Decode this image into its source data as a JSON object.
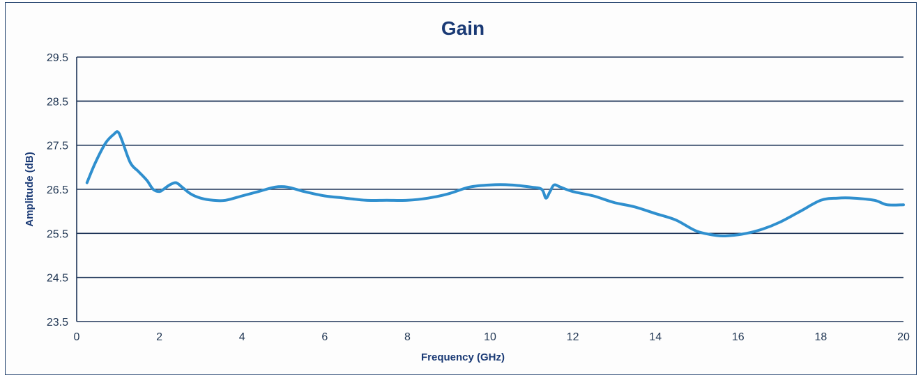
{
  "chart_data": {
    "type": "line",
    "title": "Gain",
    "xlabel": "Frequency (GHz)",
    "ylabel": "Amplitude (dB)",
    "xlim": [
      0,
      20
    ],
    "ylim": [
      23.5,
      29.5
    ],
    "x_ticks": [
      "0",
      "2",
      "4",
      "6",
      "8",
      "10",
      "12",
      "14",
      "16",
      "18",
      "20"
    ],
    "y_ticks": [
      "29.5",
      "28.5",
      "27.5",
      "26.5",
      "25.5",
      "24.5",
      "23.5"
    ],
    "grid": true,
    "legend": "none",
    "series_color": "#2f8fce",
    "series": [
      {
        "x": [
          0.25,
          0.45,
          0.7,
          0.9,
          1.0,
          1.1,
          1.3,
          1.5,
          1.7,
          1.85,
          2.0,
          2.1,
          2.25,
          2.4,
          2.55,
          2.75,
          3.0,
          3.3,
          3.6,
          4.0,
          4.4,
          4.8,
          5.1,
          5.5,
          6.0,
          6.5,
          7.0,
          7.5,
          8.0,
          8.5,
          9.0,
          9.5,
          10.0,
          10.5,
          11.0,
          11.25,
          11.35,
          11.45,
          11.55,
          11.7,
          12.0,
          12.5,
          13.0,
          13.5,
          14.0,
          14.5,
          15.0,
          15.5,
          15.8,
          16.2,
          16.6,
          17.0,
          17.5,
          18.0,
          18.4,
          18.8,
          19.3,
          19.6,
          20.0
        ],
        "y": [
          26.65,
          27.1,
          27.55,
          27.75,
          27.8,
          27.6,
          27.1,
          26.9,
          26.7,
          26.5,
          26.45,
          26.5,
          26.6,
          26.65,
          26.55,
          26.4,
          26.3,
          26.25,
          26.25,
          26.35,
          26.45,
          26.55,
          26.55,
          26.45,
          26.35,
          26.3,
          26.25,
          26.25,
          26.25,
          26.3,
          26.4,
          26.55,
          26.6,
          26.6,
          26.55,
          26.5,
          26.3,
          26.45,
          26.6,
          26.55,
          26.45,
          26.35,
          26.2,
          26.1,
          25.95,
          25.8,
          25.55,
          25.45,
          25.45,
          25.5,
          25.6,
          25.75,
          26.0,
          26.25,
          26.3,
          26.3,
          26.25,
          26.15,
          26.15
        ]
      }
    ]
  }
}
